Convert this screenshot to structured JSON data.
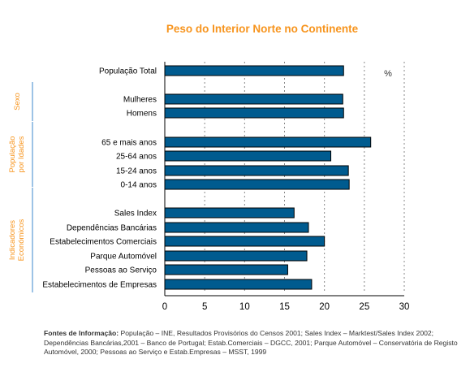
{
  "chart_data": {
    "type": "bar",
    "orientation": "horizontal",
    "title": "Peso do Interior Norte no Continente",
    "unit_label": "%",
    "categories": [
      "População Total",
      "Mulheres",
      "Homens",
      "65 e mais anos",
      "25-64 anos",
      "15-24 anos",
      "0-14 anos",
      "Sales Index",
      "Dependências Bancárias",
      "Estabelecimentos Comerciais",
      "Parque Automóvel",
      "Pessoas ao Serviço",
      "Estabelecimentos de Empresas"
    ],
    "values": [
      22.4,
      22.3,
      22.4,
      25.8,
      20.8,
      23.0,
      23.1,
      16.2,
      18.0,
      20.0,
      17.8,
      15.4,
      18.4
    ],
    "groups": [
      {
        "label": "Sexo",
        "categories": [
          "Mulheres",
          "Homens"
        ]
      },
      {
        "label": "População por Idades",
        "categories": [
          "65 e mais anos",
          "25-64 anos",
          "15-24 anos",
          "0-14 anos"
        ]
      },
      {
        "label": "Indicadores Económicos",
        "categories": [
          "Sales Index",
          "Dependências Bancárias",
          "Estabelecimentos Comerciais",
          "Parque Automóvel",
          "Pessoas ao Serviço",
          "Estabelecimentos de Empresas"
        ]
      }
    ],
    "xlim": [
      0,
      30
    ],
    "xticks": [
      0,
      5,
      10,
      15,
      20,
      25,
      30
    ],
    "grid": "vertical dotted",
    "colors": {
      "bar": "#005B8F",
      "bar_outline": "#000000",
      "title": "#F7941D",
      "group_label": "#F7941D",
      "group_line": "#9DC3E6"
    }
  },
  "footer": {
    "sources_label": "Fontes de Informação:",
    "sources_text": "População – INE, Resultados Provisórios do Censos 2001; Sales Index – Marktest/Sales Index 2002; Dependências Bancárias,2001 – Banco de Portugal; Estab.Comerciais – DGCC, 2001; Parque Automóvel – Conservatória de Registo Automóvel, 2000; Pessoas ao Serviço e Estab.Empresas – MSST, 1999"
  }
}
